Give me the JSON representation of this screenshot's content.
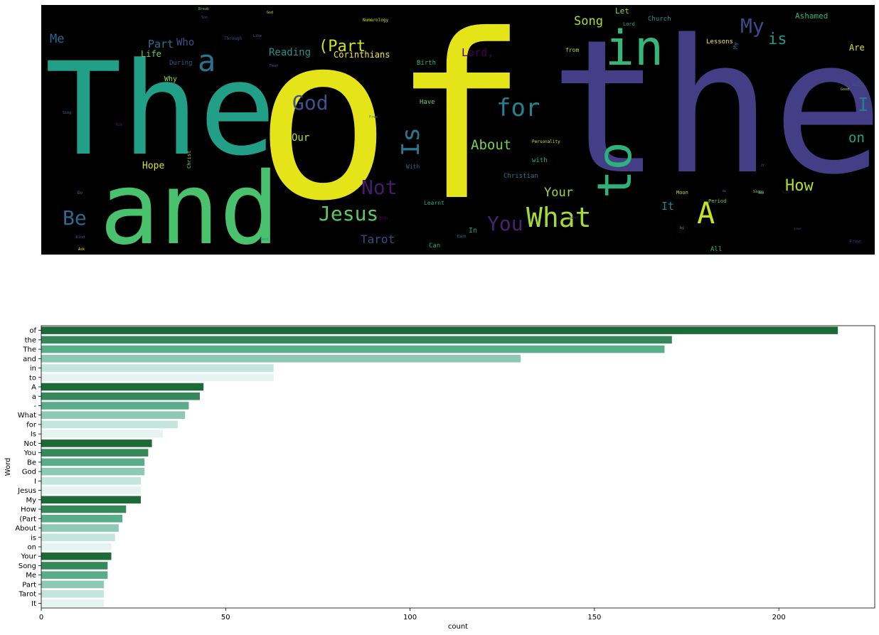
{
  "wordcloud": {
    "words": [
      {
        "text": "The",
        "color": "#21a087"
      },
      {
        "text": "of",
        "color": "#e5e419"
      },
      {
        "text": "the",
        "color": "#433e85"
      },
      {
        "text": "and",
        "color": "#4ac16d"
      },
      {
        "text": "in",
        "color": "#35b779"
      },
      {
        "text": "to",
        "color": "#2db27d"
      },
      {
        "text": "a",
        "color": "#2c728e"
      },
      {
        "text": "A",
        "color": "#c8e020"
      },
      {
        "text": "What",
        "color": "#a5db36"
      },
      {
        "text": "God",
        "color": "#3b528b"
      },
      {
        "text": "for",
        "color": "#26818e"
      },
      {
        "text": "Is",
        "color": "#2a788e"
      },
      {
        "text": "Not",
        "color": "#481a6c"
      },
      {
        "text": "You",
        "color": "#482173"
      },
      {
        "text": "Jesus",
        "color": "#5ec962"
      },
      {
        "text": "My",
        "color": "#3e4989"
      },
      {
        "text": "How",
        "color": "#b5de2b"
      },
      {
        "text": "(Part",
        "color": "#d2e21b"
      },
      {
        "text": "Be",
        "color": "#31688e"
      },
      {
        "text": "About",
        "color": "#7ad151"
      },
      {
        "text": "is",
        "color": "#1f9a8a"
      },
      {
        "text": "I",
        "color": "#277f8e"
      },
      {
        "text": "on",
        "color": "#20a386"
      },
      {
        "text": "Your",
        "color": "#a2da37"
      },
      {
        "text": "Song",
        "color": "#addc30"
      },
      {
        "text": "Me",
        "color": "#31688e"
      },
      {
        "text": "Part",
        "color": "#2c728e"
      },
      {
        "text": "Tarot",
        "color": "#3e4989"
      },
      {
        "text": "It",
        "color": "#25848e"
      },
      {
        "text": "-",
        "color": "#2a788e"
      },
      {
        "text": "Reading",
        "color": "#1f958b"
      },
      {
        "text": "Corinthians",
        "color": "#fde725"
      },
      {
        "text": "Lord,",
        "color": "#440154"
      },
      {
        "text": "Who",
        "color": "#3b528b"
      },
      {
        "text": "Our",
        "color": "#b8de29"
      },
      {
        "text": "Hope",
        "color": "#dde318"
      },
      {
        "text": "Life",
        "color": "#6ccd5a"
      },
      {
        "text": "Let",
        "color": "#90d743"
      },
      {
        "text": "Ashamed",
        "color": "#2eb37c"
      },
      {
        "text": "Are",
        "color": "#dae319"
      },
      {
        "text": "Church",
        "color": "#1f968b"
      },
      {
        "text": "Lessons",
        "color": "#fde725"
      },
      {
        "text": "During",
        "color": "#39568c"
      },
      {
        "text": "Why",
        "color": "#9fda3a"
      },
      {
        "text": "Have",
        "color": "#6ece58"
      },
      {
        "text": "Birth",
        "color": "#32b67a"
      },
      {
        "text": "Christian",
        "color": "#2d708e"
      },
      {
        "text": "Learnt",
        "color": "#20a486"
      },
      {
        "text": "Can",
        "color": "#25ac82"
      },
      {
        "text": "All",
        "color": "#3bbb75"
      },
      {
        "text": "In",
        "color": "#1fa088"
      },
      {
        "text": "with",
        "color": "#26ad81"
      },
      {
        "text": "With",
        "color": "#2f6c8e"
      },
      {
        "text": "from",
        "color": "#b4de2c"
      },
      {
        "text": "Moon",
        "color": "#c0df25"
      },
      {
        "text": "Christ",
        "color": "#8bd646"
      },
      {
        "text": "Personality",
        "color": "#cde11d"
      },
      {
        "text": "Period",
        "color": "#7cd250"
      },
      {
        "text": "Lord",
        "color": "#22a785"
      },
      {
        "text": "Numerology",
        "color": "#d2e21b"
      },
      {
        "text": "Through",
        "color": "#3a538b"
      },
      {
        "text": "Break",
        "color": "#6ece58"
      },
      {
        "text": "God",
        "color": "#b8de29"
      },
      {
        "text": "Too",
        "color": "#38588c"
      },
      {
        "text": "Like",
        "color": "#306a8e"
      },
      {
        "text": "Fear",
        "color": "#2a768e"
      },
      {
        "text": "Each",
        "color": "#25838e"
      },
      {
        "text": "Sing",
        "color": "#27808e"
      },
      {
        "text": "Do",
        "color": "#2d718e"
      },
      {
        "text": "Ask",
        "color": "#fde725"
      },
      {
        "text": "Them",
        "color": "#440154"
      },
      {
        "text": "Free",
        "color": "#218e8d"
      },
      {
        "text": "Kind",
        "color": "#31688e"
      },
      {
        "text": "Free",
        "color": "#482878"
      },
      {
        "text": "Your",
        "color": "#471365"
      },
      {
        "text": "Signs",
        "color": "#9bd93c"
      },
      {
        "text": "Good",
        "color": "#8bd646"
      },
      {
        "text": "My",
        "color": "#2c728e"
      },
      {
        "text": "by",
        "color": "#3dbc74"
      },
      {
        "text": "Will",
        "color": "#365c8d"
      },
      {
        "text": "It",
        "color": "#2a788e"
      },
      {
        "text": "Love",
        "color": "#3a538b"
      },
      {
        "text": "Off",
        "color": "#404688"
      },
      {
        "text": "Him",
        "color": "#482173"
      },
      {
        "text": "Need",
        "color": "#20928c"
      },
      {
        "text": "Mind",
        "color": "#481a6c"
      },
      {
        "text": "Am",
        "color": "#23898e"
      }
    ]
  },
  "chart_data": {
    "type": "bar",
    "orientation": "horizontal",
    "categories": [
      "of",
      "the",
      "The",
      "and",
      "in",
      "to",
      "A",
      "a",
      "-",
      "What",
      "for",
      "Is",
      "Not",
      "You",
      "Be",
      "God",
      "I",
      "Jesus",
      "My",
      "How",
      "(Part",
      "About",
      "is",
      "on",
      "Your",
      "Song",
      "Me",
      "Part",
      "Tarot",
      "It"
    ],
    "values": [
      216,
      171,
      169,
      130,
      63,
      63,
      44,
      43,
      40,
      39,
      37,
      33,
      30,
      29,
      28,
      28,
      27,
      27,
      27,
      23,
      22,
      21,
      20,
      19,
      19,
      18,
      18,
      17,
      17,
      17
    ],
    "colors": [
      "#1c6a37",
      "#36875a",
      "#5aad8a",
      "#8ec9b5",
      "#c3e5db",
      "#e5f4f1"
    ],
    "xlabel": "count",
    "ylabel": "Word",
    "xlim": [
      0,
      226
    ],
    "xticks": [
      0,
      50,
      100,
      150,
      200
    ],
    "grid": false
  }
}
